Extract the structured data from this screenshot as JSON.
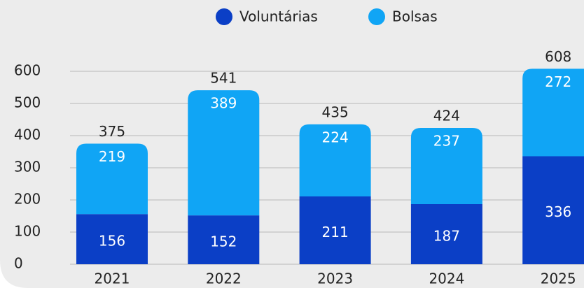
{
  "chart_data": {
    "type": "stacked_bar",
    "categories": [
      "2021",
      "2022",
      "2023",
      "2024",
      "2025"
    ],
    "series": [
      {
        "name": "Voluntárias",
        "color": "#0b3fc6",
        "values": [
          156,
          152,
          211,
          187,
          336
        ]
      },
      {
        "name": "Bolsas",
        "color": "#10a5f5",
        "values": [
          219,
          389,
          224,
          237,
          272
        ]
      }
    ],
    "totals": [
      375,
      541,
      435,
      424,
      608
    ],
    "ylim": [
      0,
      600
    ],
    "yticks": [
      0,
      100,
      200,
      300,
      400,
      500,
      600
    ],
    "grid": true,
    "legend": "top"
  }
}
